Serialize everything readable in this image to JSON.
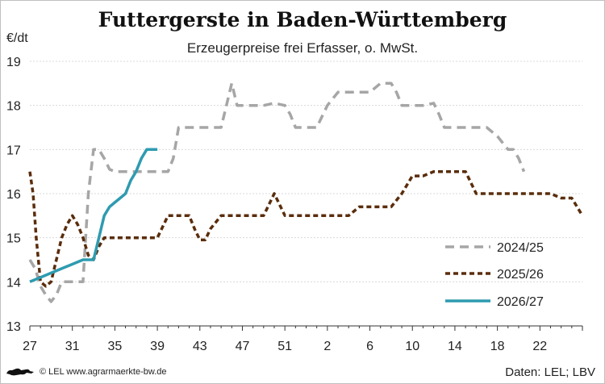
{
  "chart_data": {
    "type": "line",
    "title": "Futtergerste in Baden-Württemberg",
    "subtitle": "Erzeugerpreise frei Erfasser, o. MwSt.",
    "ylabel": "€/dt",
    "ylim": [
      13,
      19
    ],
    "yticks": [
      "13",
      "14",
      "15",
      "16",
      "17",
      "18",
      "19"
    ],
    "xticks": [
      "27",
      "31",
      "35",
      "39",
      "43",
      "47",
      "51",
      "2",
      "6",
      "10",
      "14",
      "18",
      "22"
    ],
    "grid": true,
    "legend_position": "bottom-right",
    "series": [
      {
        "name": "2024/25",
        "color": "#a6a6a6",
        "dash": "dash",
        "points": [
          [
            0,
            14.5
          ],
          [
            0.5,
            14.3
          ],
          [
            1,
            13.9
          ],
          [
            1.5,
            13.7
          ],
          [
            2,
            13.55
          ],
          [
            2.5,
            13.7
          ],
          [
            3,
            14.0
          ],
          [
            4,
            14.0
          ],
          [
            5,
            14.0
          ],
          [
            5.5,
            16.0
          ],
          [
            6,
            17.0
          ],
          [
            6.5,
            17.0
          ],
          [
            7,
            16.8
          ],
          [
            7.5,
            16.55
          ],
          [
            8,
            16.5
          ],
          [
            9,
            16.5
          ],
          [
            10,
            16.5
          ],
          [
            11,
            16.5
          ],
          [
            12,
            16.5
          ],
          [
            13,
            16.5
          ],
          [
            13.5,
            16.8
          ],
          [
            14,
            17.5
          ],
          [
            15,
            17.5
          ],
          [
            16,
            17.5
          ],
          [
            17,
            17.5
          ],
          [
            18,
            17.5
          ],
          [
            18.5,
            18.0
          ],
          [
            19,
            18.5
          ],
          [
            19.5,
            18.0
          ],
          [
            20,
            18.0
          ],
          [
            21,
            18.0
          ],
          [
            22,
            18.0
          ],
          [
            23,
            18.05
          ],
          [
            24,
            18.0
          ],
          [
            24.5,
            17.8
          ],
          [
            25,
            17.5
          ],
          [
            26,
            17.5
          ],
          [
            27,
            17.5
          ],
          [
            28,
            18.0
          ],
          [
            29,
            18.3
          ],
          [
            30,
            18.3
          ],
          [
            31,
            18.3
          ],
          [
            32,
            18.3
          ],
          [
            33,
            18.5
          ],
          [
            34,
            18.5
          ],
          [
            34.5,
            18.3
          ],
          [
            35,
            18.0
          ],
          [
            36,
            18.0
          ],
          [
            37,
            18.0
          ],
          [
            38,
            18.05
          ],
          [
            38.5,
            17.8
          ],
          [
            39,
            17.5
          ],
          [
            40,
            17.5
          ],
          [
            41,
            17.5
          ],
          [
            42,
            17.5
          ],
          [
            43,
            17.5
          ],
          [
            44,
            17.3
          ],
          [
            45,
            17.0
          ],
          [
            45.5,
            17.0
          ],
          [
            46,
            16.8
          ],
          [
            46.5,
            16.5
          ]
        ]
      },
      {
        "name": "2025/26",
        "color": "#5a2d0c",
        "dash": "dot",
        "points": [
          [
            0,
            16.5
          ],
          [
            0.3,
            16.0
          ],
          [
            0.6,
            15.0
          ],
          [
            1,
            14.0
          ],
          [
            1.5,
            13.9
          ],
          [
            2,
            14.0
          ],
          [
            2.5,
            14.5
          ],
          [
            3,
            15.0
          ],
          [
            3.5,
            15.3
          ],
          [
            4,
            15.5
          ],
          [
            4.5,
            15.3
          ],
          [
            5,
            15.0
          ],
          [
            5.5,
            14.6
          ],
          [
            6,
            14.5
          ],
          [
            6.5,
            14.8
          ],
          [
            7,
            15.0
          ],
          [
            8,
            15.0
          ],
          [
            9,
            15.0
          ],
          [
            10,
            15.0
          ],
          [
            11,
            15.0
          ],
          [
            12,
            15.0
          ],
          [
            13,
            15.5
          ],
          [
            14,
            15.5
          ],
          [
            15,
            15.5
          ],
          [
            15.5,
            15.2
          ],
          [
            16,
            14.95
          ],
          [
            16.5,
            14.95
          ],
          [
            17,
            15.2
          ],
          [
            18,
            15.5
          ],
          [
            19,
            15.5
          ],
          [
            20,
            15.5
          ],
          [
            21,
            15.5
          ],
          [
            22,
            15.5
          ],
          [
            23,
            16.0
          ],
          [
            24,
            15.5
          ],
          [
            25,
            15.5
          ],
          [
            26,
            15.5
          ],
          [
            27,
            15.5
          ],
          [
            28,
            15.5
          ],
          [
            29,
            15.5
          ],
          [
            30,
            15.5
          ],
          [
            31,
            15.7
          ],
          [
            32,
            15.7
          ],
          [
            33,
            15.7
          ],
          [
            34,
            15.7
          ],
          [
            35,
            16.0
          ],
          [
            36,
            16.4
          ],
          [
            37,
            16.4
          ],
          [
            38,
            16.5
          ],
          [
            39,
            16.5
          ],
          [
            40,
            16.5
          ],
          [
            41,
            16.5
          ],
          [
            42,
            16.0
          ],
          [
            43,
            16.0
          ],
          [
            44,
            16.0
          ],
          [
            45,
            16.0
          ],
          [
            46,
            16.0
          ],
          [
            47,
            16.0
          ],
          [
            48,
            16.0
          ],
          [
            49,
            16.0
          ],
          [
            50,
            15.9
          ],
          [
            51,
            15.9
          ],
          [
            52,
            15.5
          ]
        ]
      },
      {
        "name": "2026/27",
        "color": "#2e9bb0",
        "dash": "solid",
        "points": [
          [
            0,
            14.0
          ],
          [
            1,
            14.1
          ],
          [
            2,
            14.2
          ],
          [
            3,
            14.3
          ],
          [
            4,
            14.4
          ],
          [
            5,
            14.5
          ],
          [
            5.5,
            14.5
          ],
          [
            6,
            14.5
          ],
          [
            6.5,
            15.0
          ],
          [
            7,
            15.5
          ],
          [
            7.5,
            15.7
          ],
          [
            8,
            15.8
          ],
          [
            8.5,
            15.9
          ],
          [
            9,
            16.0
          ],
          [
            9.5,
            16.3
          ],
          [
            10,
            16.5
          ],
          [
            10.5,
            16.8
          ],
          [
            11,
            17.0
          ],
          [
            11.5,
            17.0
          ],
          [
            12,
            17.0
          ]
        ]
      }
    ]
  },
  "footer": {
    "left": "© LEL www.agrarmaerkte-bw.de",
    "right": "Daten: LEL; LBV"
  }
}
